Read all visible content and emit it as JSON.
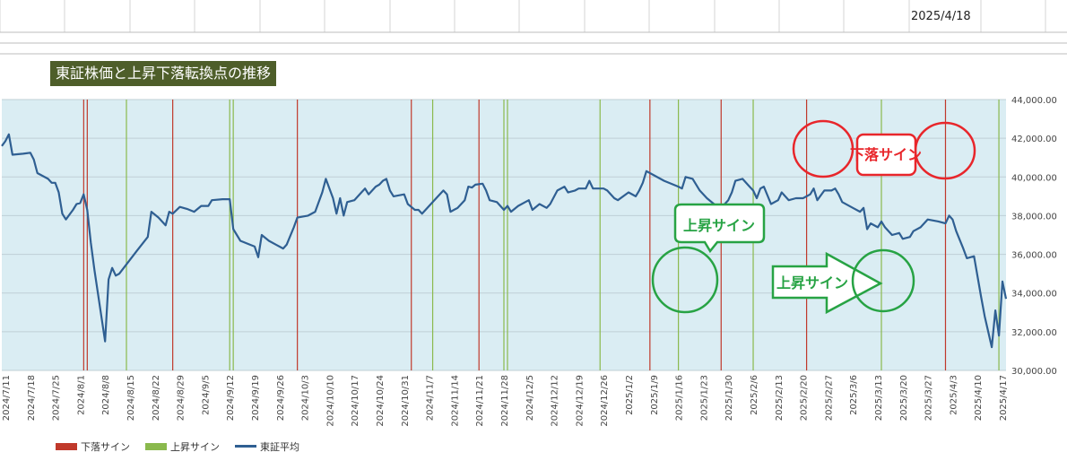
{
  "sheet": {
    "date_cell": "2025/4/18"
  },
  "colors": {
    "plot_bg": "#daedf3",
    "sell": "#c0392b",
    "buy": "#8ab94d",
    "price": "#2f5f92",
    "title_bg": "#4e5e2a",
    "ann_red": "#e8262b",
    "ann_green": "#27a344"
  },
  "chart_data": {
    "type": "line",
    "title": "東証株価と上昇下落転換点の推移",
    "ylim": [
      30000,
      44000
    ],
    "y_ticks": [
      "30,000.00",
      "32,000.00",
      "34,000.00",
      "36,000.00",
      "38,000.00",
      "40,000.00",
      "42,000.00",
      "44,000.00"
    ],
    "x_ticks": [
      "2024/7/11",
      "2024/7/18",
      "2024/7/25",
      "2024/8/1",
      "2024/8/8",
      "2024/8/15",
      "2024/8/22",
      "2024/8/29",
      "2024/9/5",
      "2024/9/12",
      "2024/9/19",
      "2024/9/26",
      "2024/10/3",
      "2024/10/10",
      "2024/10/17",
      "2024/10/24",
      "2024/10/31",
      "2024/11/7",
      "2024/11/14",
      "2024/11/21",
      "2024/11/28",
      "2024/12/5",
      "2024/12/12",
      "2024/12/19",
      "2024/12/26",
      "2025/1/2",
      "2025/1/9",
      "2025/1/16",
      "2025/1/23",
      "2025/1/30",
      "2025/2/6",
      "2025/2/13",
      "2025/2/20",
      "2025/2/27",
      "2025/3/6",
      "2025/3/13",
      "2025/3/20",
      "2025/3/27",
      "2025/4/3",
      "2025/4/10",
      "2025/4/17"
    ],
    "x_start": "2024/7/10",
    "x_end": "2025/4/18",
    "legend": {
      "position": "bottom-left",
      "items": [
        "下落サイン",
        "上昇サイン",
        "東証平均"
      ]
    },
    "sell_signals": [
      "2024/8/2",
      "2024/8/3",
      "2024/8/27",
      "2024/10/1",
      "2024/11/2",
      "2024/11/21",
      "2025/1/8",
      "2025/1/28",
      "2025/2/21",
      "2025/4/1"
    ],
    "buy_signals": [
      "2024/8/14",
      "2024/9/12",
      "2024/9/13",
      "2024/11/8",
      "2024/11/28",
      "2024/11/29",
      "2024/12/25",
      "2025/1/16",
      "2025/2/6",
      "2025/3/14",
      "2025/4/16"
    ],
    "series": [
      {
        "name": "東証平均",
        "points": [
          [
            "2024/7/10",
            41600
          ],
          [
            "2024/7/11",
            41850
          ],
          [
            "2024/7/12",
            42200
          ],
          [
            "2024/7/13",
            41150
          ],
          [
            "2024/7/16",
            41200
          ],
          [
            "2024/7/18",
            41250
          ],
          [
            "2024/7/19",
            40900
          ],
          [
            "2024/7/20",
            40200
          ],
          [
            "2024/7/23",
            39900
          ],
          [
            "2024/7/24",
            39700
          ],
          [
            "2024/7/25",
            39700
          ],
          [
            "2024/7/26",
            39200
          ],
          [
            "2024/7/27",
            38100
          ],
          [
            "2024/7/28",
            37800
          ],
          [
            "2024/7/30",
            38300
          ],
          [
            "2024/7/31",
            38600
          ],
          [
            "2024/8/1",
            38650
          ],
          [
            "2024/8/2",
            39100
          ],
          [
            "2024/8/3",
            38300
          ],
          [
            "2024/8/4",
            36600
          ],
          [
            "2024/8/5",
            35200
          ],
          [
            "2024/8/8",
            31500
          ],
          [
            "2024/8/9",
            34700
          ],
          [
            "2024/8/10",
            35300
          ],
          [
            "2024/8/11",
            34900
          ],
          [
            "2024/8/12",
            35000
          ],
          [
            "2024/8/17",
            36200
          ],
          [
            "2024/8/20",
            36900
          ],
          [
            "2024/8/21",
            38200
          ],
          [
            "2024/8/23",
            37900
          ],
          [
            "2024/8/25",
            37500
          ],
          [
            "2024/8/26",
            38200
          ],
          [
            "2024/8/27",
            38100
          ],
          [
            "2024/8/29",
            38450
          ],
          [
            "2024/8/31",
            38350
          ],
          [
            "2024/9/2",
            38200
          ],
          [
            "2024/9/4",
            38500
          ],
          [
            "2024/9/6",
            38500
          ],
          [
            "2024/9/7",
            38800
          ],
          [
            "2024/9/10",
            38850
          ],
          [
            "2024/9/12",
            38850
          ],
          [
            "2024/9/13",
            37300
          ],
          [
            "2024/9/15",
            36700
          ],
          [
            "2024/9/19",
            36400
          ],
          [
            "2024/9/20",
            35850
          ],
          [
            "2024/9/21",
            37000
          ],
          [
            "2024/9/23",
            36700
          ],
          [
            "2024/9/25",
            36500
          ],
          [
            "2024/9/27",
            36300
          ],
          [
            "2024/9/28",
            36500
          ],
          [
            "2024/9/30",
            37400
          ],
          [
            "2024/10/1",
            37900
          ],
          [
            "2024/10/4",
            38000
          ],
          [
            "2024/10/6",
            38200
          ],
          [
            "2024/10/8",
            39200
          ],
          [
            "2024/10/9",
            39900
          ],
          [
            "2024/10/11",
            38900
          ],
          [
            "2024/10/12",
            38100
          ],
          [
            "2024/10/13",
            38900
          ],
          [
            "2024/10/14",
            38000
          ],
          [
            "2024/10/15",
            38700
          ],
          [
            "2024/10/17",
            38800
          ],
          [
            "2024/10/19",
            39200
          ],
          [
            "2024/10/20",
            39400
          ],
          [
            "2024/10/21",
            39100
          ],
          [
            "2024/10/23",
            39500
          ],
          [
            "2024/10/24",
            39600
          ],
          [
            "2024/10/25",
            39800
          ],
          [
            "2024/10/26",
            39900
          ],
          [
            "2024/10/27",
            39300
          ],
          [
            "2024/10/28",
            39000
          ],
          [
            "2024/10/31",
            39100
          ],
          [
            "2024/11/1",
            38600
          ],
          [
            "2024/11/3",
            38300
          ],
          [
            "2024/11/4",
            38300
          ],
          [
            "2024/11/5",
            38100
          ],
          [
            "2024/11/7",
            38500
          ],
          [
            "2024/11/9",
            38900
          ],
          [
            "2024/11/11",
            39300
          ],
          [
            "2024/11/12",
            39100
          ],
          [
            "2024/11/13",
            38200
          ],
          [
            "2024/11/15",
            38400
          ],
          [
            "2024/11/17",
            38800
          ],
          [
            "2024/11/18",
            39500
          ],
          [
            "2024/11/19",
            39450
          ],
          [
            "2024/11/20",
            39600
          ],
          [
            "2024/11/22",
            39650
          ],
          [
            "2024/11/23",
            39300
          ],
          [
            "2024/11/24",
            38800
          ],
          [
            "2024/11/26",
            38700
          ],
          [
            "2024/11/28",
            38300
          ],
          [
            "2024/11/29",
            38500
          ],
          [
            "2024/11/30",
            38200
          ],
          [
            "2024/12/2",
            38500
          ],
          [
            "2024/12/4",
            38700
          ],
          [
            "2024/12/5",
            38800
          ],
          [
            "2024/12/6",
            38300
          ],
          [
            "2024/12/8",
            38600
          ],
          [
            "2024/12/10",
            38400
          ],
          [
            "2024/12/11",
            38600
          ],
          [
            "2024/12/13",
            39300
          ],
          [
            "2024/12/15",
            39500
          ],
          [
            "2024/12/16",
            39200
          ],
          [
            "2024/12/18",
            39300
          ],
          [
            "2024/12/19",
            39400
          ],
          [
            "2024/12/21",
            39400
          ],
          [
            "2024/12/22",
            39800
          ],
          [
            "2024/12/23",
            39400
          ],
          [
            "2024/12/26",
            39400
          ],
          [
            "2024/12/27",
            39300
          ],
          [
            "2024/12/29",
            38900
          ],
          [
            "2024/12/30",
            38800
          ],
          [
            "2025/1/2",
            39200
          ],
          [
            "2025/1/4",
            39000
          ],
          [
            "2025/1/5",
            39300
          ],
          [
            "2025/1/6",
            39700
          ],
          [
            "2025/1/7",
            40300
          ],
          [
            "2025/1/9",
            40100
          ],
          [
            "2025/1/12",
            39800
          ],
          [
            "2025/1/16",
            39500
          ],
          [
            "2025/1/17",
            39400
          ],
          [
            "2025/1/18",
            40000
          ],
          [
            "2025/1/20",
            39900
          ],
          [
            "2025/1/22",
            39300
          ],
          [
            "2025/1/24",
            38900
          ],
          [
            "2025/1/26",
            38600
          ],
          [
            "2025/1/28",
            38400
          ],
          [
            "2025/1/30",
            38800
          ],
          [
            "2025/1/31",
            39200
          ],
          [
            "2025/2/1",
            39800
          ],
          [
            "2025/2/3",
            39900
          ],
          [
            "2025/2/5",
            39500
          ],
          [
            "2025/2/6",
            39300
          ],
          [
            "2025/2/7",
            38900
          ],
          [
            "2025/2/8",
            39400
          ],
          [
            "2025/2/9",
            39500
          ],
          [
            "2025/2/11",
            38600
          ],
          [
            "2025/2/13",
            38800
          ],
          [
            "2025/2/14",
            39200
          ],
          [
            "2025/2/16",
            38800
          ],
          [
            "2025/2/18",
            38900
          ],
          [
            "2025/2/20",
            38900
          ],
          [
            "2025/2/22",
            39100
          ],
          [
            "2025/2/23",
            39400
          ],
          [
            "2025/2/24",
            38800
          ],
          [
            "2025/2/26",
            39300
          ],
          [
            "2025/2/28",
            39300
          ],
          [
            "2025/3/1",
            39400
          ],
          [
            "2025/3/2",
            39100
          ],
          [
            "2025/3/3",
            38700
          ],
          [
            "2025/3/6",
            38400
          ],
          [
            "2025/3/8",
            38200
          ],
          [
            "2025/3/9",
            38400
          ],
          [
            "2025/3/10",
            37300
          ],
          [
            "2025/3/11",
            37600
          ],
          [
            "2025/3/13",
            37400
          ],
          [
            "2025/3/14",
            37700
          ],
          [
            "2025/3/15",
            37400
          ],
          [
            "2025/3/17",
            37000
          ],
          [
            "2025/3/19",
            37100
          ],
          [
            "2025/3/20",
            36800
          ],
          [
            "2025/3/22",
            36900
          ],
          [
            "2025/3/23",
            37200
          ],
          [
            "2025/3/25",
            37400
          ],
          [
            "2025/3/27",
            37800
          ],
          [
            "2025/3/30",
            37700
          ],
          [
            "2025/4/1",
            37600
          ],
          [
            "2025/4/2",
            38000
          ],
          [
            "2025/4/3",
            37800
          ],
          [
            "2025/4/4",
            37200
          ],
          [
            "2025/4/6",
            36300
          ],
          [
            "2025/4/7",
            35800
          ],
          [
            "2025/4/9",
            35900
          ],
          [
            "2025/4/11",
            33800
          ],
          [
            "2025/4/12",
            32800
          ],
          [
            "2025/4/14",
            31200
          ],
          [
            "2025/4/15",
            33100
          ],
          [
            "2025/4/16",
            31800
          ],
          [
            "2025/4/17",
            34600
          ],
          [
            "2025/4/18",
            33700
          ]
        ]
      }
    ],
    "annotations": {
      "sell_label": "下落サイン",
      "buy_label": "上昇サイン",
      "buy_arrow_label": "上昇サイン"
    }
  }
}
